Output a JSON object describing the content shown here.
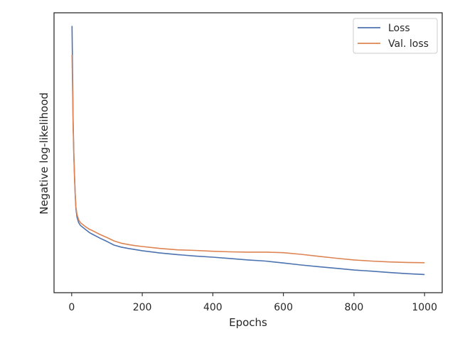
{
  "chart_data": {
    "type": "line",
    "title": "",
    "xlabel": "Epochs",
    "ylabel": "Negative log-likelihood",
    "xlim": [
      -50,
      1050
    ],
    "ylim": [
      0,
      1
    ],
    "x_ticks": [
      0,
      200,
      400,
      600,
      800,
      1000
    ],
    "y_ticks_shown": false,
    "grid": false,
    "legend_position": "upper right",
    "series": [
      {
        "name": "Loss",
        "color": "#4c72b0",
        "points": [
          [
            1,
            0.953
          ],
          [
            2,
            0.85
          ],
          [
            3,
            0.74
          ],
          [
            4,
            0.62
          ],
          [
            6,
            0.5
          ],
          [
            8,
            0.42
          ],
          [
            10,
            0.35
          ],
          [
            12,
            0.3
          ],
          [
            15,
            0.27
          ],
          [
            20,
            0.25
          ],
          [
            25,
            0.24
          ],
          [
            30,
            0.235
          ],
          [
            40,
            0.225
          ],
          [
            50,
            0.215
          ],
          [
            60,
            0.208
          ],
          [
            80,
            0.195
          ],
          [
            100,
            0.183
          ],
          [
            120,
            0.17
          ],
          [
            140,
            0.163
          ],
          [
            160,
            0.158
          ],
          [
            180,
            0.154
          ],
          [
            200,
            0.15
          ],
          [
            250,
            0.142
          ],
          [
            300,
            0.136
          ],
          [
            350,
            0.131
          ],
          [
            400,
            0.127
          ],
          [
            450,
            0.122
          ],
          [
            500,
            0.117
          ],
          [
            550,
            0.113
          ],
          [
            600,
            0.106
          ],
          [
            650,
            0.099
          ],
          [
            700,
            0.093
          ],
          [
            750,
            0.087
          ],
          [
            800,
            0.081
          ],
          [
            850,
            0.077
          ],
          [
            900,
            0.072
          ],
          [
            950,
            0.068
          ],
          [
            1000,
            0.065
          ]
        ]
      },
      {
        "name": "Val. loss",
        "color": "#dd8452",
        "points": [
          [
            1,
            0.85
          ],
          [
            2,
            0.77
          ],
          [
            3,
            0.69
          ],
          [
            4,
            0.6
          ],
          [
            6,
            0.49
          ],
          [
            8,
            0.41
          ],
          [
            10,
            0.35
          ],
          [
            12,
            0.305
          ],
          [
            15,
            0.28
          ],
          [
            20,
            0.26
          ],
          [
            25,
            0.25
          ],
          [
            30,
            0.245
          ],
          [
            40,
            0.235
          ],
          [
            50,
            0.227
          ],
          [
            60,
            0.221
          ],
          [
            80,
            0.208
          ],
          [
            100,
            0.197
          ],
          [
            120,
            0.185
          ],
          [
            140,
            0.177
          ],
          [
            160,
            0.172
          ],
          [
            180,
            0.168
          ],
          [
            200,
            0.165
          ],
          [
            250,
            0.158
          ],
          [
            300,
            0.153
          ],
          [
            350,
            0.151
          ],
          [
            400,
            0.148
          ],
          [
            450,
            0.146
          ],
          [
            500,
            0.145
          ],
          [
            550,
            0.145
          ],
          [
            600,
            0.143
          ],
          [
            650,
            0.137
          ],
          [
            700,
            0.13
          ],
          [
            750,
            0.123
          ],
          [
            800,
            0.117
          ],
          [
            850,
            0.113
          ],
          [
            900,
            0.11
          ],
          [
            950,
            0.108
          ],
          [
            1000,
            0.107
          ]
        ]
      }
    ]
  }
}
